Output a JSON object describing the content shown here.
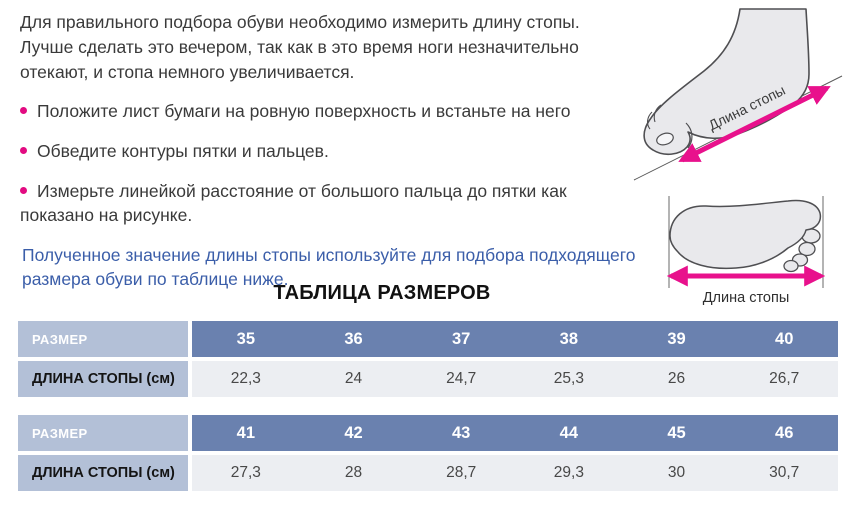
{
  "instructions": {
    "intro": "Для правильного подбора обуви необходимо измерить длину стопы. Лучше сделать это вечером, так как в это время ноги незначительно отекают, и стопа немного увеличивается.",
    "bullets": [
      "Положите лист бумаги на ровную поверхность и встаньте на него",
      "Обведите контуры пятки и пальцев.",
      "Измерьте линейкой расстояние от большого пальца до пятки как показано на рисунке."
    ],
    "note": "Полученное значение длины стопы используйте для подбора подходящего размера обуви по таблице ниже."
  },
  "illustrations": {
    "side_foot_label": "Длина стопы",
    "sole_foot_label": "Длина стопы"
  },
  "size_table": {
    "title": "ТАБЛИЦА РАЗМЕРОВ",
    "row_labels": {
      "size": "РАЗМЕР",
      "length": "ДЛИНА СТОПЫ (см)"
    },
    "tables": [
      {
        "sizes": [
          "35",
          "36",
          "37",
          "38",
          "39",
          "40"
        ],
        "lengths": [
          "22,3",
          "24",
          "24,7",
          "25,3",
          "26",
          "26,7"
        ]
      },
      {
        "sizes": [
          "41",
          "42",
          "43",
          "44",
          "45",
          "46"
        ],
        "lengths": [
          "27,3",
          "28",
          "28,7",
          "29,3",
          "30",
          "30,7"
        ]
      }
    ]
  },
  "chart_data": {
    "type": "table",
    "title": "ТАБЛИЦА РАЗМЕРОВ",
    "columns": [
      "РАЗМЕР",
      "ДЛИНА СТОПЫ (см)"
    ],
    "rows": [
      [
        35,
        22.3
      ],
      [
        36,
        24
      ],
      [
        37,
        24.7
      ],
      [
        38,
        25.3
      ],
      [
        39,
        26
      ],
      [
        40,
        26.7
      ],
      [
        41,
        27.3
      ],
      [
        42,
        28
      ],
      [
        43,
        28.7
      ],
      [
        44,
        29.3
      ],
      [
        45,
        30
      ],
      [
        46,
        30.7
      ]
    ]
  },
  "colors": {
    "accent_pink": "#e8118c",
    "bullet_pink": "#e20b81",
    "header_blue": "#6a81af",
    "label_blue": "#b3c0d7",
    "value_row_bg": "#eceef2",
    "note_blue": "#3b5ea9",
    "body_text": "#3a3a3a"
  }
}
